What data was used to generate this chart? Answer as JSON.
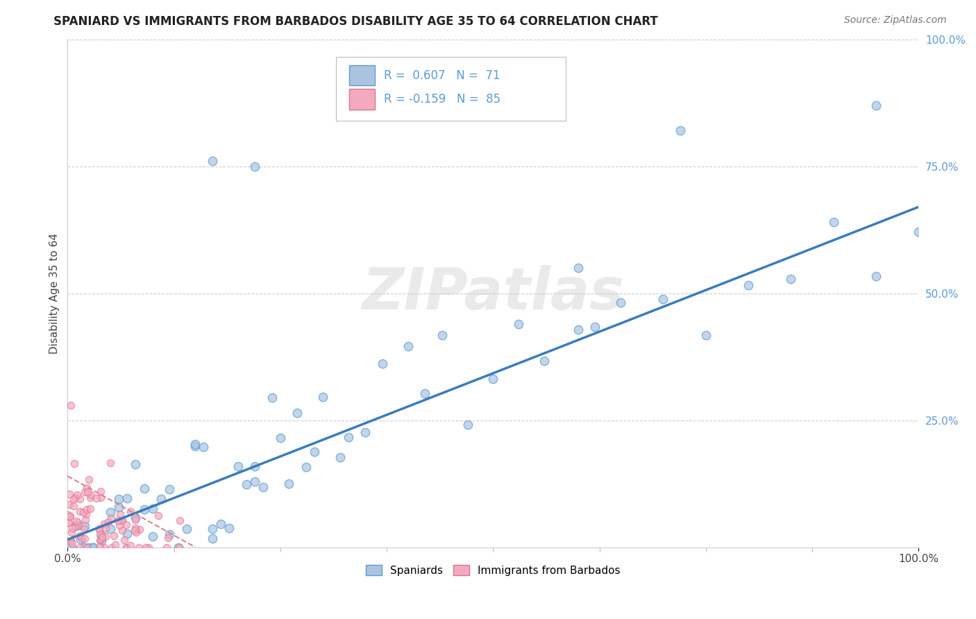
{
  "title": "SPANIARD VS IMMIGRANTS FROM BARBADOS DISABILITY AGE 35 TO 64 CORRELATION CHART",
  "source_text": "Source: ZipAtlas.com",
  "ylabel": "Disability Age 35 to 64",
  "xlim": [
    0,
    1.0
  ],
  "ylim": [
    0,
    1.0
  ],
  "spaniard_color": "#aac4e0",
  "spaniard_edge": "#5b9bd5",
  "barbados_color": "#f4aabe",
  "barbados_edge": "#e07090",
  "trend_spaniard_color": "#3a7bbf",
  "trend_barbados_color": "#e08090",
  "R_spaniard": 0.607,
  "N_spaniard": 71,
  "R_barbados": -0.159,
  "N_barbados": 85,
  "legend_label_spaniard": "Spaniards",
  "legend_label_barbados": "Immigrants from Barbados",
  "ytick_color": "#5b9bd5",
  "grid_color": "#cccccc",
  "sp_trend_x0": 0.0,
  "sp_trend_y0": 0.015,
  "sp_trend_x1": 1.0,
  "sp_trend_y1": 0.67,
  "bb_trend_x0": 0.0,
  "bb_trend_y0": 0.14,
  "bb_trend_x1": 0.15,
  "bb_trend_y1": 0.0
}
